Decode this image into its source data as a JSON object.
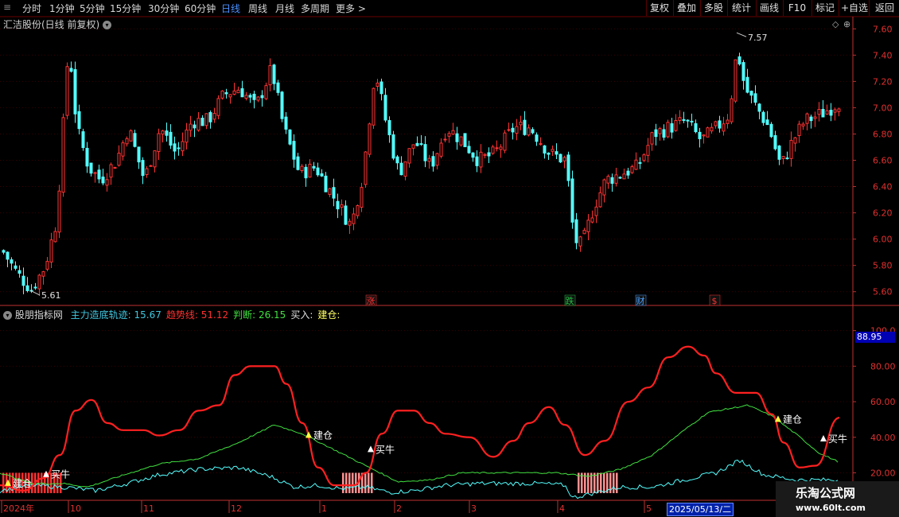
{
  "toolbar": {
    "left_items": [
      "分时",
      "1分钟",
      "5分钟",
      "15分钟",
      "30分钟",
      "60分钟",
      "日线",
      "周线",
      "月线",
      "多周期",
      "更多 >"
    ],
    "active_index": 6,
    "right_items": [
      "复权",
      "叠加",
      "多股",
      "统计",
      "画线",
      "F10",
      "+自选",
      "返回"
    ],
    "right_prefix": "标记"
  },
  "main_panel": {
    "title": "汇洁股份(日线 前复权)",
    "y_ticks": [
      "7.60",
      "7.40",
      "7.20",
      "7.00",
      "6.80",
      "6.60",
      "6.40",
      "6.20",
      "6.00",
      "5.80",
      "5.60"
    ],
    "y_range": [
      5.55,
      7.65
    ],
    "high_label": "7.57",
    "low_label": "5.61",
    "markers": [
      {
        "text": "涨",
        "color": "#ff3030"
      },
      {
        "text": "跌",
        "color": "#20c040"
      },
      {
        "text": "财",
        "color": "#4aa0ff"
      },
      {
        "text": "$",
        "color": "#ff3030"
      }
    ]
  },
  "indicator_panel": {
    "name": "股朋指标网",
    "legend": [
      {
        "label": "主力造底轨迹: 15.67",
        "color": "#40c8e0"
      },
      {
        "label": "趋势线: 51.12",
        "color": "#ff3030"
      },
      {
        "label": "判断: 26.15",
        "color": "#40e040"
      },
      {
        "label": "买入:",
        "color": "#e0e0e0"
      },
      {
        "label": "建仓:",
        "color": "#ffff60"
      }
    ],
    "y_ticks": [
      "100.0",
      "80.00",
      "60.00",
      "40.00",
      "20.00"
    ],
    "y_range": [
      5,
      107
    ],
    "current_value": "88.95",
    "signals": [
      {
        "type": "建仓",
        "text": "建仓"
      },
      {
        "type": "买牛",
        "text": "买牛"
      },
      {
        "type": "建仓",
        "text": "建仓"
      },
      {
        "type": "买牛",
        "text": "买牛"
      },
      {
        "type": "建仓",
        "text": "建仓"
      },
      {
        "type": "买牛",
        "text": "买牛"
      }
    ]
  },
  "x_axis": {
    "labels": [
      "2024年",
      "10",
      "11",
      "12",
      "1",
      "2",
      "3",
      "4",
      "5"
    ],
    "cursor_date": "2025/05/13/二"
  },
  "colors": {
    "up": "#ff3333",
    "down": "#54ffff",
    "trend": "#ff2020",
    "judge": "#40e040",
    "bottom": "#40c8e0",
    "grid": "#5a0000",
    "axis": "#c03030"
  },
  "watermark": {
    "line1": "乐淘公式网",
    "line2": "www.60lt.com"
  },
  "chart_data": {
    "type": "candlestick",
    "ohlc_keypoints": [
      {
        "x": 0,
        "close": 5.93
      },
      {
        "x": 20,
        "close": 5.74
      },
      {
        "x": 38,
        "close": 5.62
      },
      {
        "x": 55,
        "close": 5.79
      },
      {
        "x": 70,
        "close": 6.15
      },
      {
        "x": 85,
        "close": 7.5
      },
      {
        "x": 95,
        "close": 6.85
      },
      {
        "x": 110,
        "close": 6.55
      },
      {
        "x": 125,
        "close": 6.45
      },
      {
        "x": 145,
        "close": 6.6
      },
      {
        "x": 160,
        "close": 6.85
      },
      {
        "x": 180,
        "close": 6.45
      },
      {
        "x": 200,
        "close": 6.85
      },
      {
        "x": 220,
        "close": 6.65
      },
      {
        "x": 240,
        "close": 6.9
      },
      {
        "x": 260,
        "close": 6.9
      },
      {
        "x": 280,
        "close": 7.1
      },
      {
        "x": 300,
        "close": 7.15
      },
      {
        "x": 320,
        "close": 7.0
      },
      {
        "x": 340,
        "close": 7.3
      },
      {
        "x": 355,
        "close": 6.85
      },
      {
        "x": 375,
        "close": 6.5
      },
      {
        "x": 395,
        "close": 6.55
      },
      {
        "x": 415,
        "close": 6.35
      },
      {
        "x": 440,
        "close": 6.1
      },
      {
        "x": 455,
        "close": 6.5
      },
      {
        "x": 470,
        "close": 7.3
      },
      {
        "x": 485,
        "close": 6.85
      },
      {
        "x": 500,
        "close": 6.5
      },
      {
        "x": 520,
        "close": 6.75
      },
      {
        "x": 540,
        "close": 6.55
      },
      {
        "x": 560,
        "close": 6.85
      },
      {
        "x": 580,
        "close": 6.75
      },
      {
        "x": 600,
        "close": 6.6
      },
      {
        "x": 620,
        "close": 6.65
      },
      {
        "x": 645,
        "close": 6.85
      },
      {
        "x": 665,
        "close": 6.85
      },
      {
        "x": 690,
        "close": 6.65
      },
      {
        "x": 710,
        "close": 6.6
      },
      {
        "x": 720,
        "close": 6.0
      },
      {
        "x": 730,
        "close": 5.95
      },
      {
        "x": 745,
        "close": 6.25
      },
      {
        "x": 760,
        "close": 6.45
      },
      {
        "x": 780,
        "close": 6.5
      },
      {
        "x": 800,
        "close": 6.55
      },
      {
        "x": 820,
        "close": 6.8
      },
      {
        "x": 840,
        "close": 6.85
      },
      {
        "x": 860,
        "close": 6.9
      },
      {
        "x": 880,
        "close": 6.75
      },
      {
        "x": 900,
        "close": 6.85
      },
      {
        "x": 915,
        "close": 6.95
      },
      {
        "x": 925,
        "close": 7.45
      },
      {
        "x": 935,
        "close": 7.15
      },
      {
        "x": 950,
        "close": 7.0
      },
      {
        "x": 965,
        "close": 6.85
      },
      {
        "x": 980,
        "close": 6.55
      },
      {
        "x": 995,
        "close": 6.75
      },
      {
        "x": 1010,
        "close": 6.9
      },
      {
        "x": 1030,
        "close": 6.95
      },
      {
        "x": 1055,
        "close": 7.05
      }
    ],
    "trend_keypoints": [
      [
        0,
        13
      ],
      [
        30,
        10
      ],
      [
        55,
        17
      ],
      [
        75,
        30
      ],
      [
        95,
        55
      ],
      [
        115,
        61
      ],
      [
        135,
        48
      ],
      [
        155,
        44
      ],
      [
        180,
        44
      ],
      [
        200,
        41
      ],
      [
        225,
        44
      ],
      [
        250,
        55
      ],
      [
        275,
        58
      ],
      [
        295,
        75
      ],
      [
        315,
        80
      ],
      [
        345,
        80
      ],
      [
        360,
        70
      ],
      [
        380,
        48
      ],
      [
        400,
        23
      ],
      [
        420,
        13
      ],
      [
        445,
        13
      ],
      [
        460,
        20
      ],
      [
        480,
        42
      ],
      [
        500,
        55
      ],
      [
        520,
        55
      ],
      [
        540,
        48
      ],
      [
        560,
        42
      ],
      [
        590,
        40
      ],
      [
        620,
        29
      ],
      [
        645,
        38
      ],
      [
        665,
        48
      ],
      [
        690,
        57
      ],
      [
        710,
        47
      ],
      [
        735,
        30
      ],
      [
        760,
        38
      ],
      [
        790,
        60
      ],
      [
        815,
        68
      ],
      [
        840,
        85
      ],
      [
        865,
        91
      ],
      [
        885,
        86
      ],
      [
        900,
        76
      ],
      [
        925,
        65
      ],
      [
        950,
        65
      ],
      [
        970,
        53
      ],
      [
        985,
        37
      ],
      [
        1005,
        23
      ],
      [
        1025,
        24
      ],
      [
        1055,
        51
      ]
    ],
    "judge_keypoints": [
      [
        0,
        20
      ],
      [
        40,
        14
      ],
      [
        80,
        14
      ],
      [
        110,
        12
      ],
      [
        150,
        18
      ],
      [
        200,
        25
      ],
      [
        250,
        28
      ],
      [
        300,
        37
      ],
      [
        345,
        47
      ],
      [
        380,
        42
      ],
      [
        420,
        33
      ],
      [
        460,
        24
      ],
      [
        500,
        15
      ],
      [
        540,
        16
      ],
      [
        580,
        20
      ],
      [
        620,
        20
      ],
      [
        660,
        20
      ],
      [
        700,
        20
      ],
      [
        740,
        18
      ],
      [
        780,
        22
      ],
      [
        820,
        30
      ],
      [
        860,
        44
      ],
      [
        890,
        54
      ],
      [
        940,
        58
      ],
      [
        970,
        52
      ],
      [
        1000,
        42
      ],
      [
        1030,
        31
      ],
      [
        1055,
        26
      ]
    ],
    "bottom_keypoints": [
      [
        0,
        10
      ],
      [
        40,
        13
      ],
      [
        80,
        12
      ],
      [
        120,
        10
      ],
      [
        160,
        14
      ],
      [
        200,
        19
      ],
      [
        250,
        22
      ],
      [
        300,
        23
      ],
      [
        340,
        18
      ],
      [
        370,
        12
      ],
      [
        400,
        13
      ],
      [
        430,
        11
      ],
      [
        460,
        12
      ],
      [
        490,
        9
      ],
      [
        520,
        10
      ],
      [
        560,
        13
      ],
      [
        600,
        14
      ],
      [
        640,
        14
      ],
      [
        680,
        14
      ],
      [
        710,
        13
      ],
      [
        720,
        6
      ],
      [
        740,
        8
      ],
      [
        780,
        12
      ],
      [
        820,
        12
      ],
      [
        860,
        16
      ],
      [
        900,
        20
      ],
      [
        930,
        27
      ],
      [
        960,
        19
      ],
      [
        1000,
        16
      ],
      [
        1055,
        16
      ]
    ],
    "bar_zones": [
      {
        "x0": 3,
        "x1": 78,
        "top": 20,
        "color": "#ff3030"
      },
      {
        "x0": 430,
        "x1": 468,
        "top": 20,
        "color": "#ff9090"
      },
      {
        "x0": 726,
        "x1": 776,
        "top": 20,
        "color": "#ff9090"
      }
    ],
    "signal_positions": [
      {
        "x": 10,
        "v": 14,
        "type": "建仓"
      },
      {
        "x": 58,
        "v": 19,
        "type": "买牛"
      },
      {
        "x": 388,
        "v": 41,
        "type": "建仓"
      },
      {
        "x": 466,
        "v": 33,
        "type": "买牛"
      },
      {
        "x": 978,
        "v": 50,
        "type": "建仓"
      },
      {
        "x": 1035,
        "v": 39,
        "type": "买牛"
      }
    ]
  }
}
